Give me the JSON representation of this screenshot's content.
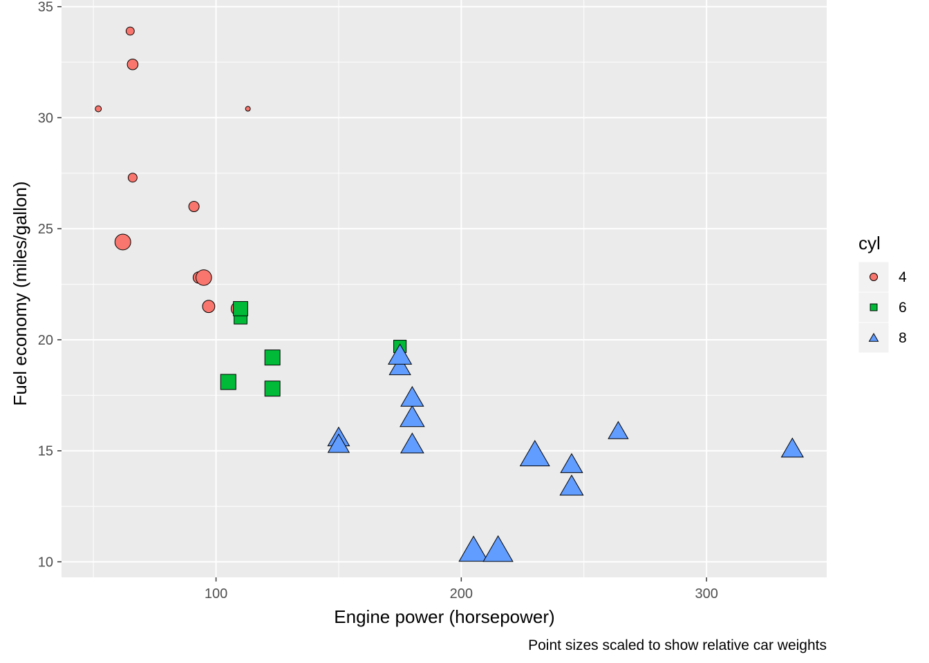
{
  "chart_data": {
    "type": "scatter",
    "xlabel": "Engine power (horsepower)",
    "ylabel": "Fuel economy (miles/gallon)",
    "caption": "Point sizes scaled to show relative car weights",
    "xlim": [
      37,
      349
    ],
    "ylim": [
      9.3,
      35.3
    ],
    "x_ticks": [
      100,
      200,
      300
    ],
    "y_ticks": [
      10,
      15,
      20,
      25,
      30,
      35
    ],
    "grid": true,
    "legend": {
      "title": "cyl",
      "position": "right",
      "entries": [
        {
          "label": "4",
          "shape": "circle",
          "color": "#F8766D"
        },
        {
          "label": "6",
          "shape": "square",
          "color": "#00BA38"
        },
        {
          "label": "8",
          "shape": "triangle",
          "color": "#619CFF"
        }
      ]
    },
    "series": [
      {
        "name": "4",
        "shape": "circle",
        "color": "#F8766D",
        "points": [
          {
            "hp": 93,
            "mpg": 22.8,
            "wt": 2.32
          },
          {
            "hp": 62,
            "mpg": 24.4,
            "wt": 3.19
          },
          {
            "hp": 95,
            "mpg": 22.8,
            "wt": 3.15
          },
          {
            "hp": 66,
            "mpg": 32.4,
            "wt": 2.2
          },
          {
            "hp": 52,
            "mpg": 30.4,
            "wt": 1.615
          },
          {
            "hp": 65,
            "mpg": 33.9,
            "wt": 1.835
          },
          {
            "hp": 97,
            "mpg": 21.5,
            "wt": 2.465
          },
          {
            "hp": 66,
            "mpg": 27.3,
            "wt": 1.935
          },
          {
            "hp": 91,
            "mpg": 26.0,
            "wt": 2.14
          },
          {
            "hp": 113,
            "mpg": 30.4,
            "wt": 1.513
          },
          {
            "hp": 109,
            "mpg": 21.4,
            "wt": 2.78
          }
        ]
      },
      {
        "name": "6",
        "shape": "square",
        "color": "#00BA38",
        "points": [
          {
            "hp": 110,
            "mpg": 21.0,
            "wt": 2.62
          },
          {
            "hp": 110,
            "mpg": 21.0,
            "wt": 2.875
          },
          {
            "hp": 110,
            "mpg": 21.4,
            "wt": 3.215
          },
          {
            "hp": 105,
            "mpg": 18.1,
            "wt": 3.46
          },
          {
            "hp": 123,
            "mpg": 19.2,
            "wt": 3.44
          },
          {
            "hp": 123,
            "mpg": 17.8,
            "wt": 3.44
          },
          {
            "hp": 175,
            "mpg": 19.7,
            "wt": 2.77
          }
        ]
      },
      {
        "name": "8",
        "shape": "triangle",
        "color": "#619CFF",
        "points": [
          {
            "hp": 175,
            "mpg": 18.7,
            "wt": 3.44
          },
          {
            "hp": 245,
            "mpg": 14.3,
            "wt": 3.57
          },
          {
            "hp": 180,
            "mpg": 16.4,
            "wt": 4.07
          },
          {
            "hp": 180,
            "mpg": 17.3,
            "wt": 3.73
          },
          {
            "hp": 180,
            "mpg": 15.2,
            "wt": 3.78
          },
          {
            "hp": 205,
            "mpg": 10.4,
            "wt": 5.25
          },
          {
            "hp": 215,
            "mpg": 10.4,
            "wt": 5.424
          },
          {
            "hp": 230,
            "mpg": 14.7,
            "wt": 5.345
          },
          {
            "hp": 150,
            "mpg": 15.5,
            "wt": 3.52
          },
          {
            "hp": 150,
            "mpg": 15.2,
            "wt": 3.435
          },
          {
            "hp": 245,
            "mpg": 13.3,
            "wt": 3.84
          },
          {
            "hp": 175,
            "mpg": 19.2,
            "wt": 3.845
          },
          {
            "hp": 264,
            "mpg": 15.8,
            "wt": 3.17
          },
          {
            "hp": 335,
            "mpg": 15.0,
            "wt": 3.57
          }
        ]
      }
    ]
  }
}
